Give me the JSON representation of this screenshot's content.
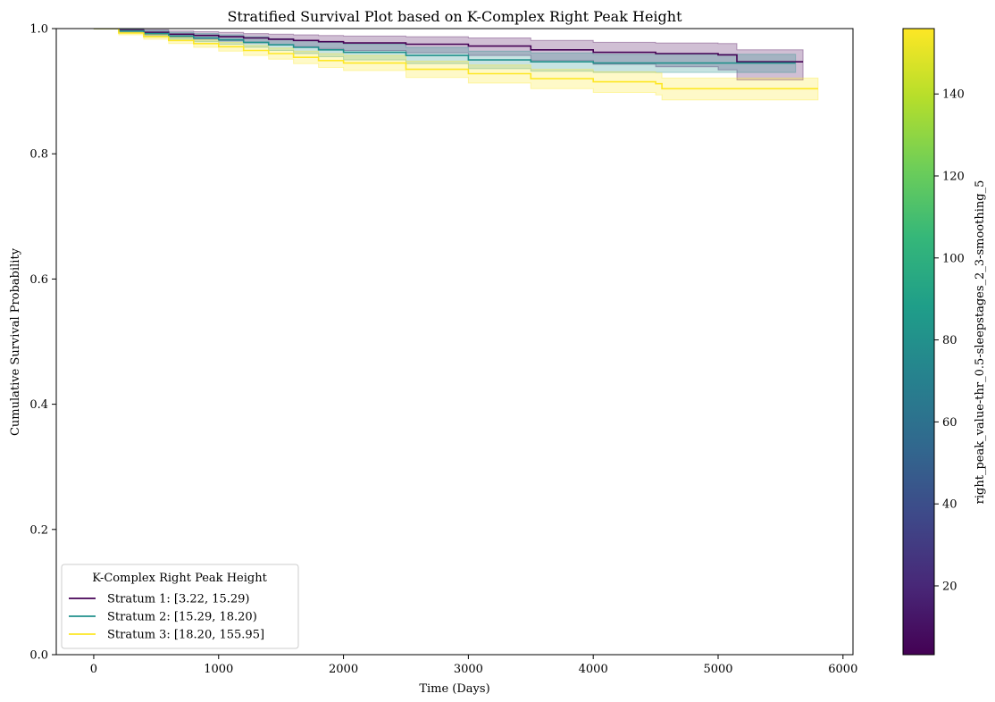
{
  "chart_data": {
    "type": "line",
    "title": "Stratified Survival Plot based on K-Complex Right Peak Height",
    "xlabel": "Time (Days)",
    "ylabel": "Cumulative Survival Probability",
    "xlim": [
      -300,
      6080
    ],
    "ylim": [
      0.0,
      1.0
    ],
    "xticks": [
      0,
      1000,
      2000,
      3000,
      4000,
      5000,
      6000
    ],
    "xtick_labels": [
      "0",
      "1000",
      "2000",
      "3000",
      "4000",
      "5000",
      "6000"
    ],
    "yticks": [
      0.0,
      0.2,
      0.4,
      0.6,
      0.8,
      1.0
    ],
    "ytick_labels": [
      "0.0",
      "0.2",
      "0.4",
      "0.6",
      "0.8",
      "1.0"
    ],
    "grid": false,
    "legend": {
      "title": "K-Complex Right Peak Height",
      "placement": "lower-left"
    },
    "series": [
      {
        "name": "Stratum 1: [3.22, 15.29)",
        "color": "#440154",
        "x": [
          0,
          200,
          400,
          600,
          800,
          1000,
          1200,
          1400,
          1600,
          1800,
          2000,
          2500,
          3000,
          3500,
          4000,
          4500,
          5000,
          5150,
          5680
        ],
        "y": [
          1.0,
          0.997,
          0.994,
          0.991,
          0.989,
          0.987,
          0.985,
          0.983,
          0.981,
          0.979,
          0.977,
          0.975,
          0.972,
          0.966,
          0.962,
          0.96,
          0.958,
          0.947,
          0.947
        ],
        "ci_lower": [
          1.0,
          0.994,
          0.99,
          0.986,
          0.983,
          0.98,
          0.977,
          0.974,
          0.971,
          0.968,
          0.965,
          0.961,
          0.957,
          0.949,
          0.943,
          0.939,
          0.934,
          0.918,
          0.918
        ],
        "ci_upper": [
          1.0,
          0.999,
          0.998,
          0.996,
          0.995,
          0.994,
          0.992,
          0.991,
          0.99,
          0.989,
          0.988,
          0.987,
          0.985,
          0.981,
          0.978,
          0.977,
          0.976,
          0.966,
          0.966
        ]
      },
      {
        "name": "Stratum 2: [15.29, 18.20)",
        "color": "#21918c",
        "x": [
          0,
          200,
          400,
          600,
          800,
          1000,
          1200,
          1400,
          1600,
          1800,
          2000,
          2500,
          3000,
          3500,
          4000,
          4500,
          5000,
          5150,
          5620
        ],
        "y": [
          1.0,
          0.996,
          0.992,
          0.988,
          0.985,
          0.982,
          0.978,
          0.974,
          0.97,
          0.966,
          0.962,
          0.957,
          0.95,
          0.947,
          0.945,
          0.945,
          0.945,
          0.945,
          0.945
        ],
        "ci_lower": [
          1.0,
          0.993,
          0.988,
          0.983,
          0.979,
          0.975,
          0.97,
          0.965,
          0.96,
          0.955,
          0.95,
          0.944,
          0.936,
          0.932,
          0.93,
          0.93,
          0.93,
          0.93,
          0.93
        ],
        "ci_upper": [
          1.0,
          0.999,
          0.997,
          0.994,
          0.992,
          0.99,
          0.987,
          0.984,
          0.981,
          0.978,
          0.975,
          0.97,
          0.964,
          0.961,
          0.959,
          0.959,
          0.959,
          0.959,
          0.959
        ]
      },
      {
        "name": "Stratum 3: [18.20, 155.95]",
        "color": "#fde725",
        "x": [
          0,
          200,
          400,
          600,
          800,
          1000,
          1200,
          1400,
          1600,
          1800,
          2000,
          2500,
          3000,
          3500,
          4000,
          4500,
          4550,
          5000,
          5800
        ],
        "y": [
          1.0,
          0.993,
          0.987,
          0.981,
          0.976,
          0.971,
          0.965,
          0.96,
          0.954,
          0.949,
          0.945,
          0.935,
          0.928,
          0.92,
          0.915,
          0.912,
          0.904,
          0.904,
          0.904
        ],
        "ci_lower": [
          1.0,
          0.99,
          0.983,
          0.976,
          0.97,
          0.964,
          0.957,
          0.951,
          0.944,
          0.938,
          0.933,
          0.922,
          0.913,
          0.904,
          0.898,
          0.894,
          0.886,
          0.886,
          0.886
        ],
        "ci_upper": [
          1.0,
          0.996,
          0.991,
          0.986,
          0.982,
          0.978,
          0.973,
          0.969,
          0.964,
          0.96,
          0.957,
          0.948,
          0.942,
          0.935,
          0.931,
          0.929,
          0.921,
          0.921,
          0.921
        ]
      }
    ],
    "colorbar": {
      "label": "right_peak_value-thr_0.5-sleepstages_2_3-smoothing_5",
      "range": [
        3.22,
        155.95
      ],
      "ticks": [
        20,
        40,
        60,
        80,
        100,
        120,
        140
      ],
      "tick_labels": [
        "20",
        "40",
        "60",
        "80",
        "100",
        "120",
        "140"
      ],
      "colormap": "viridis",
      "colormap_stops": [
        "#440154",
        "#482878",
        "#3e4989",
        "#31688e",
        "#26828e",
        "#1f9e89",
        "#35b779",
        "#6ece58",
        "#b5de2b",
        "#fde725"
      ]
    }
  }
}
